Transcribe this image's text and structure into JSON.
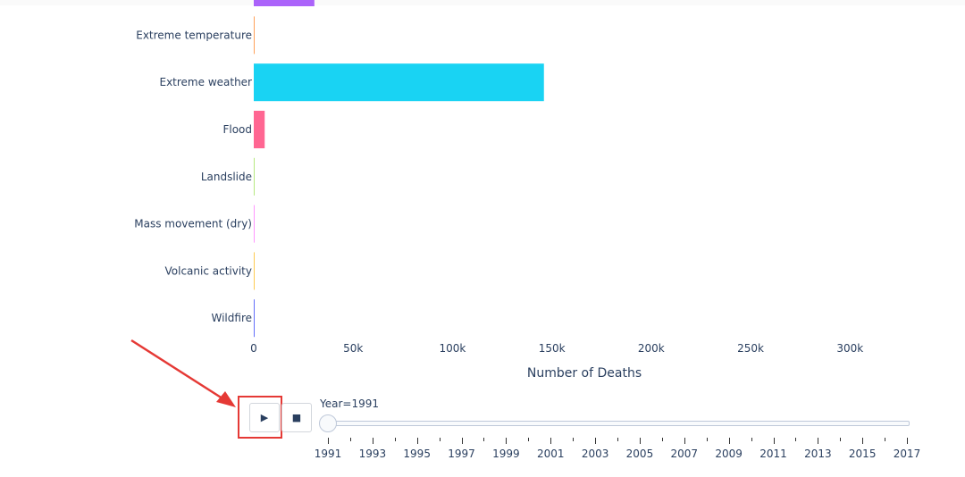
{
  "chart_data": {
    "type": "bar",
    "orientation": "horizontal",
    "categories": [
      "Extreme temperature",
      "Extreme weather",
      "Flood",
      "Landslide",
      "Mass movement (dry)",
      "Volcanic activity",
      "Wildfire"
    ],
    "values": [
      300,
      146000,
      5500,
      250,
      0,
      350,
      10
    ],
    "colors": [
      "#FFA15A",
      "#19D3F3",
      "#FF6692",
      "#B6E880",
      "#FF97FF",
      "#FECB52",
      "#636EFA"
    ],
    "partial_bar": {
      "value": 30500,
      "color": "#AB63FA"
    },
    "xlabel": "Number of Deaths",
    "xlim": [
      0,
      330000
    ],
    "xticks": [
      0,
      50000,
      100000,
      150000,
      200000,
      250000,
      300000
    ],
    "xtick_labels": [
      "0",
      "50k",
      "100k",
      "150k",
      "200k",
      "250k",
      "300k"
    ]
  },
  "controls": {
    "play_icon": "play-icon",
    "stop_icon": "stop-icon",
    "play_symbol": "▶",
    "stop_symbol": "■"
  },
  "slider": {
    "prefix": "Year=",
    "current": "1991",
    "years": [
      "1991",
      "1993",
      "1995",
      "1997",
      "1999",
      "2001",
      "2003",
      "2005",
      "2007",
      "2009",
      "2011",
      "2013",
      "2015",
      "2017"
    ]
  },
  "annotation": {
    "arrow_color": "#e53935"
  }
}
